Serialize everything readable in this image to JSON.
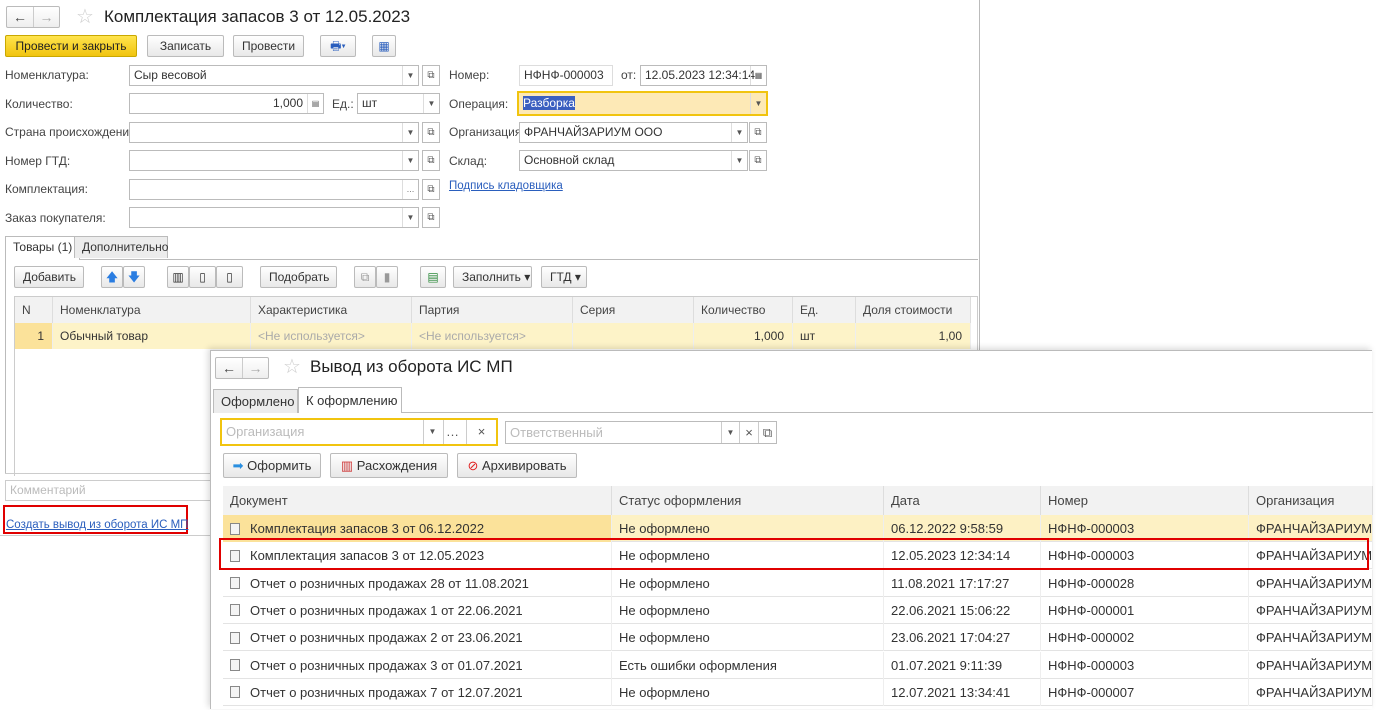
{
  "main_window": {
    "title": "Комплектация запасов 3 от 12.05.2023",
    "toolbar": {
      "post_close": "Провести и закрыть",
      "save": "Записать",
      "post": "Провести"
    },
    "fields": {
      "nomenclature_label": "Номенклатура:",
      "nomenclature_value": "Сыр весовой",
      "quantity_label": "Количество:",
      "quantity_value": "1,000",
      "unit_label": "Ед.:",
      "unit_value": "шт",
      "country_label": "Страна происхождения:",
      "gtd_label": "Номер ГТД:",
      "kit_label": "Комплектация:",
      "order_label": "Заказ покупателя:",
      "number_label": "Номер:",
      "number_value": "НФНФ-000003",
      "date_label": "от:",
      "date_value": "12.05.2023 12:34:14",
      "operation_label": "Операция:",
      "operation_value": "Разборка",
      "org_label": "Организация:",
      "org_value": "ФРАНЧАЙЗАРИУМ ООО",
      "warehouse_label": "Склад:",
      "warehouse_value": "Основной склад",
      "signature_link": "Подпись кладовщика"
    },
    "tabs": [
      "Товары (1)",
      "Дополнительно"
    ],
    "goods_toolbar": {
      "add": "Добавить",
      "pick": "Подобрать",
      "fill": "Заполнить",
      "gtd": "ГТД"
    },
    "goods_table": {
      "columns": [
        "N",
        "Номенклатура",
        "Характеристика",
        "Партия",
        "Серия",
        "Количество",
        "Ед.",
        "Доля стоимости"
      ],
      "rows": [
        [
          "1",
          "Обычный товар",
          "<Не используется>",
          "<Не используется>",
          "",
          "1,000",
          "шт",
          "1,00"
        ]
      ]
    },
    "comment_placeholder": "Комментарий",
    "create_link": "Создать вывод из оборота ИС МП"
  },
  "second_window": {
    "title": "Вывод из оборота ИС МП",
    "tabs": [
      "Оформлено",
      "К оформлению"
    ],
    "org_placeholder": "Организация",
    "resp_placeholder": "Ответственный",
    "buttons": {
      "process": "Оформить",
      "diffs": "Расхождения",
      "archive": "Архивировать"
    },
    "table": {
      "columns": [
        "Документ",
        "Статус оформления",
        "Дата",
        "Номер",
        "Организация"
      ],
      "rows": [
        [
          "Комплектация запасов 3 от 06.12.2022",
          "Не оформлено",
          "06.12.2022 9:58:59",
          "НФНФ-000003",
          "ФРАНЧАЙЗАРИУМ ООО"
        ],
        [
          "Комплектация запасов 3 от 12.05.2023",
          "Не оформлено",
          "12.05.2023 12:34:14",
          "НФНФ-000003",
          "ФРАНЧАЙЗАРИУМ ООО"
        ],
        [
          "Отчет о розничных продажах 28 от 11.08.2021",
          "Не оформлено",
          "11.08.2021 17:17:27",
          "НФНФ-000028",
          "ФРАНЧАЙЗАРИУМ ООО"
        ],
        [
          "Отчет о розничных продажах 1 от 22.06.2021",
          "Не оформлено",
          "22.06.2021 15:06:22",
          "НФНФ-000001",
          "ФРАНЧАЙЗАРИУМ ООО"
        ],
        [
          "Отчет о розничных продажах 2 от 23.06.2021",
          "Не оформлено",
          "23.06.2021 17:04:27",
          "НФНФ-000002",
          "ФРАНЧАЙЗАРИУМ ООО"
        ],
        [
          "Отчет о розничных продажах 3 от 01.07.2021",
          "Есть ошибки оформления",
          "01.07.2021 9:11:39",
          "НФНФ-000003",
          "ФРАНЧАЙЗАРИУМ ООО"
        ],
        [
          "Отчет о розничных продажах 7 от 12.07.2021",
          "Не оформлено",
          "12.07.2021 13:34:41",
          "НФНФ-000007",
          "ФРАНЧАЙЗАРИУМ ООО"
        ]
      ]
    }
  },
  "colors": {
    "accent_yellow": "#f1c40f",
    "selection": "#fdf1c4",
    "highlight_red": "#e00000",
    "link": "#2a5ebd"
  }
}
